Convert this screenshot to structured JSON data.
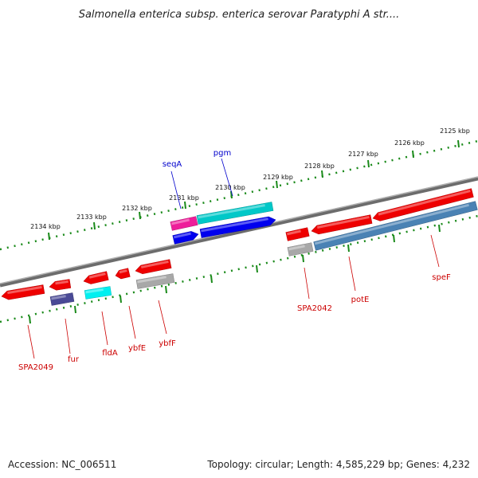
{
  "title": "Salmonella enterica subsp. enterica serovar Paratyphi A str....",
  "accession_text": "Accession: NC_006511",
  "summary_text": "Topology: circular; Length: 4,585,229 bp; Genes: 4,232",
  "colors": {
    "backbone": "#808080",
    "tick": "#1a8a1a",
    "forward_label": "#0000cc",
    "reverse_label": "#cc0000",
    "gene_red": "#ee0000",
    "gene_blue": "#0000ee",
    "gene_cyan": "#00c8c8",
    "gene_magenta": "#ee1e9a",
    "gene_navy": "#4a4a96",
    "gene_grey": "#a8a8a8",
    "gene_steelblue": "#4a82b4",
    "gene_lightcyan": "#00f0f0"
  },
  "kbp_ticks": [
    {
      "label": "2125 kbp"
    },
    {
      "label": "2126 kbp"
    },
    {
      "label": "2127 kbp"
    },
    {
      "label": "2128 kbp"
    },
    {
      "label": "2129 kbp"
    },
    {
      "label": "2130 kbp"
    },
    {
      "label": "2131 kbp"
    },
    {
      "label": "2132 kbp"
    },
    {
      "label": "2133 kbp"
    },
    {
      "label": "2134 kbp"
    }
  ],
  "gene_labels": [
    {
      "text": "seqA",
      "strand": "forward"
    },
    {
      "text": "pgm",
      "strand": "forward"
    },
    {
      "text": "SPA2042",
      "strand": "reverse"
    },
    {
      "text": "potE",
      "strand": "reverse"
    },
    {
      "text": "speF",
      "strand": "reverse"
    },
    {
      "text": "SPA2049",
      "strand": "reverse"
    },
    {
      "text": "fur",
      "strand": "reverse"
    },
    {
      "text": "fldA",
      "strand": "reverse"
    },
    {
      "text": "ybfE",
      "strand": "reverse"
    },
    {
      "text": "ybfF",
      "strand": "reverse"
    }
  ]
}
